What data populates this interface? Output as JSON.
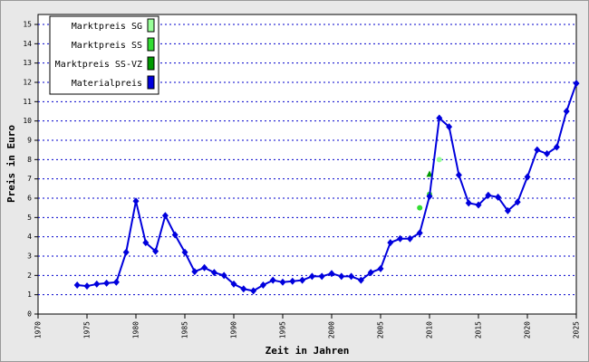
{
  "chart_data": {
    "type": "line",
    "x_label": "Zeit in Jahren",
    "y_label": "Preis in Euro",
    "xlim": [
      1970,
      2025
    ],
    "xticks": [
      1970,
      1975,
      1980,
      1985,
      1990,
      1995,
      2000,
      2005,
      2010,
      2015,
      2020,
      2025
    ],
    "ylim": [
      0,
      15
    ],
    "yticks": [
      0,
      1,
      2,
      3,
      4,
      5,
      6,
      7,
      8,
      9,
      10,
      11,
      12,
      13,
      14,
      15
    ],
    "grid": true,
    "legend": "upper left",
    "series": [
      {
        "name": "Marktpreis SG",
        "color": "#99ff99",
        "marker": "circle",
        "x": [
          2011
        ],
        "values": [
          8.0
        ]
      },
      {
        "name": "Marktpreis SS",
        "color": "#33dd33",
        "marker": "circle",
        "x": [
          2009,
          2010
        ],
        "values": [
          5.5,
          6.2
        ]
      },
      {
        "name": "Marktpreis SS-VZ",
        "color": "#009900",
        "marker": "triangle",
        "x": [
          2010
        ],
        "values": [
          7.25
        ]
      },
      {
        "name": "Materialpreis",
        "color": "#0000dd",
        "marker": "diamond",
        "line": true,
        "x": [
          1974,
          1975,
          1976,
          1977,
          1978,
          1979,
          1980,
          1981,
          1982,
          1983,
          1984,
          1985,
          1986,
          1987,
          1988,
          1989,
          1990,
          1991,
          1992,
          1993,
          1994,
          1995,
          1996,
          1997,
          1998,
          1999,
          2000,
          2001,
          2002,
          2003,
          2004,
          2005,
          2006,
          2007,
          2008,
          2009,
          2010,
          2011,
          2012,
          2013,
          2014,
          2015,
          2016,
          2017,
          2018,
          2019,
          2020,
          2021,
          2022,
          2023,
          2024,
          2025
        ],
        "values": [
          1.5,
          1.45,
          1.55,
          1.6,
          1.65,
          3.2,
          5.85,
          3.7,
          3.25,
          5.1,
          4.1,
          3.2,
          2.2,
          2.4,
          2.15,
          2.0,
          1.55,
          1.3,
          1.2,
          1.5,
          1.75,
          1.65,
          1.7,
          1.75,
          1.95,
          1.95,
          2.1,
          1.95,
          1.95,
          1.75,
          2.15,
          2.35,
          3.7,
          3.9,
          3.9,
          4.2,
          6.1,
          10.15,
          9.7,
          7.2,
          5.75,
          5.65,
          6.15,
          6.05,
          5.35,
          5.8,
          7.1,
          8.5,
          8.3,
          8.65,
          10.5,
          11.95
        ]
      }
    ]
  }
}
